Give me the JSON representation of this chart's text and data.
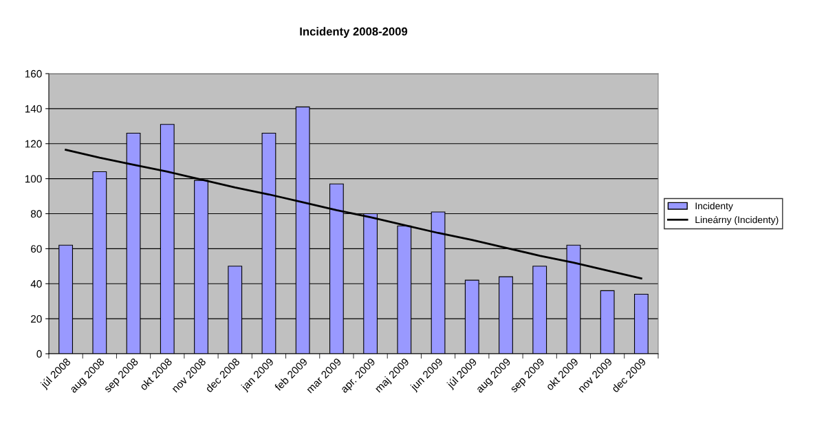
{
  "chart_data": {
    "type": "bar",
    "title": "Incidenty 2008-2009",
    "categories": [
      "júl 2008",
      "aug 2008",
      "sep 2008",
      "okt 2008",
      "nov 2008",
      "dec 2008",
      "jan 2009",
      "feb 2009",
      "mar 2009",
      "apr. 2009",
      "maj 2009",
      "jun 2009",
      "júl 2009",
      "aug 2009",
      "sep 2009",
      "okt 2009",
      "nov 2009",
      "dec 2009"
    ],
    "series": [
      {
        "name": "Incidenty",
        "color": "#9999ff",
        "values": [
          62,
          104,
          126,
          131,
          99,
          50,
          126,
          141,
          97,
          80,
          73,
          81,
          42,
          44,
          50,
          62,
          36,
          34
        ]
      },
      {
        "name": "Lineárny (Incidenty)",
        "type": "line",
        "color": "#000000",
        "values": [
          116.5,
          112,
          108,
          104,
          99.5,
          95,
          91,
          86.5,
          82,
          78,
          73.5,
          69,
          65,
          60.5,
          56,
          52,
          47.5,
          43
        ]
      }
    ],
    "ylim": [
      0,
      160
    ],
    "yticks": [
      0,
      20,
      40,
      60,
      80,
      100,
      120,
      140,
      160
    ],
    "grid": "y",
    "legend": "right"
  }
}
